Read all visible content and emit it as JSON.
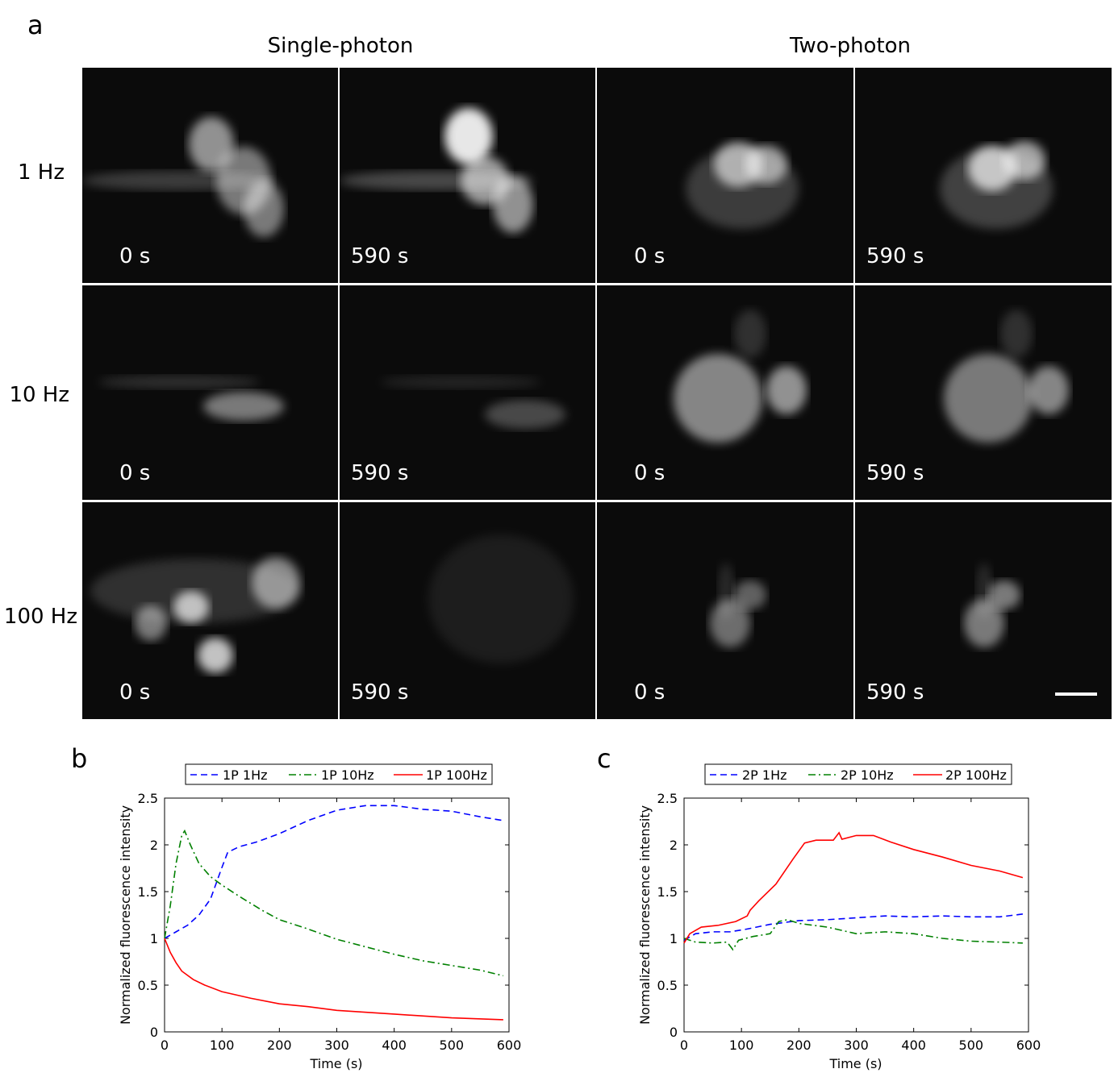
{
  "panel_labels": {
    "a": "a",
    "b": "b",
    "c": "c"
  },
  "figure_a": {
    "column_groups": [
      "Single-photon",
      "Two-photon"
    ],
    "rows": [
      "1 Hz",
      "10 Hz",
      "100 Hz"
    ],
    "cells": [
      [
        "0 s",
        "590 s",
        "0 s",
        "590 s"
      ],
      [
        "0 s",
        "590 s",
        "0 s",
        "590 s"
      ],
      [
        "0 s",
        "590 s",
        "0 s",
        "590 s"
      ]
    ]
  },
  "chart_data": [
    {
      "type": "line",
      "panel": "b",
      "xlabel": "Time (s)",
      "ylabel": "Normalized fluorescence intensity",
      "xlim": [
        0,
        600
      ],
      "ylim": [
        0,
        2.5
      ],
      "xticks": [
        0,
        100,
        200,
        300,
        400,
        500,
        600
      ],
      "yticks": [
        0,
        0.5,
        1,
        1.5,
        2,
        2.5
      ],
      "ytick_labels": [
        "0",
        "0.5",
        "1",
        "1.5",
        "2",
        "2.5"
      ],
      "legend_position": "top",
      "series": [
        {
          "name": "1P 1Hz",
          "color": "#0000ff",
          "style": "dashed",
          "x": [
            0,
            20,
            40,
            60,
            80,
            100,
            110,
            130,
            160,
            200,
            250,
            300,
            350,
            400,
            450,
            500,
            550,
            590
          ],
          "y": [
            1.0,
            1.07,
            1.14,
            1.25,
            1.42,
            1.76,
            1.92,
            1.98,
            2.03,
            2.12,
            2.26,
            2.37,
            2.42,
            2.42,
            2.38,
            2.36,
            2.3,
            2.26
          ]
        },
        {
          "name": "1P 10Hz",
          "color": "#008000",
          "style": "dashdot",
          "x": [
            0,
            10,
            20,
            30,
            35,
            45,
            60,
            80,
            100,
            130,
            170,
            200,
            250,
            300,
            350,
            400,
            450,
            500,
            550,
            590
          ],
          "y": [
            1.0,
            1.35,
            1.8,
            2.1,
            2.15,
            2.0,
            1.8,
            1.66,
            1.57,
            1.45,
            1.3,
            1.2,
            1.1,
            0.99,
            0.91,
            0.83,
            0.76,
            0.71,
            0.66,
            0.6
          ]
        },
        {
          "name": "1P 100Hz",
          "color": "#ff0000",
          "style": "solid",
          "x": [
            0,
            10,
            20,
            30,
            50,
            70,
            100,
            150,
            200,
            250,
            300,
            400,
            500,
            590
          ],
          "y": [
            1.0,
            0.85,
            0.74,
            0.65,
            0.56,
            0.5,
            0.43,
            0.36,
            0.3,
            0.27,
            0.23,
            0.19,
            0.15,
            0.13
          ]
        }
      ]
    },
    {
      "type": "line",
      "panel": "c",
      "xlabel": "Time (s)",
      "ylabel": "Normalized fluorescence intensity",
      "xlim": [
        0,
        600
      ],
      "ylim": [
        0,
        2.5
      ],
      "xticks": [
        0,
        100,
        200,
        300,
        400,
        500,
        600
      ],
      "yticks": [
        0,
        0.5,
        1,
        1.5,
        2,
        2.5
      ],
      "ytick_labels": [
        "0",
        "0.5",
        "1",
        "1.5",
        "2",
        "2.5"
      ],
      "legend_position": "top",
      "series": [
        {
          "name": "2P 1Hz",
          "color": "#0000ff",
          "style": "dashed",
          "x": [
            0,
            20,
            50,
            80,
            110,
            150,
            200,
            250,
            300,
            350,
            400,
            450,
            500,
            550,
            590
          ],
          "y": [
            0.98,
            1.05,
            1.07,
            1.07,
            1.1,
            1.15,
            1.19,
            1.2,
            1.22,
            1.24,
            1.23,
            1.24,
            1.23,
            1.23,
            1.26
          ]
        },
        {
          "name": "2P 10Hz",
          "color": "#008000",
          "style": "dashdot",
          "x": [
            0,
            20,
            50,
            75,
            85,
            95,
            120,
            150,
            165,
            180,
            200,
            250,
            300,
            350,
            400,
            450,
            500,
            550,
            590
          ],
          "y": [
            1.0,
            0.96,
            0.95,
            0.96,
            0.88,
            0.98,
            1.02,
            1.05,
            1.18,
            1.2,
            1.16,
            1.12,
            1.05,
            1.07,
            1.05,
            1.0,
            0.97,
            0.96,
            0.95
          ]
        },
        {
          "name": "2P 100Hz",
          "color": "#ff0000",
          "style": "solid",
          "x": [
            0,
            10,
            30,
            60,
            90,
            110,
            115,
            130,
            160,
            190,
            210,
            230,
            260,
            270,
            275,
            300,
            330,
            360,
            400,
            450,
            500,
            550,
            590
          ],
          "y": [
            0.95,
            1.05,
            1.12,
            1.14,
            1.18,
            1.24,
            1.3,
            1.4,
            1.58,
            1.85,
            2.02,
            2.05,
            2.05,
            2.13,
            2.06,
            2.1,
            2.1,
            2.03,
            1.95,
            1.87,
            1.78,
            1.72,
            1.65
          ]
        }
      ]
    }
  ]
}
